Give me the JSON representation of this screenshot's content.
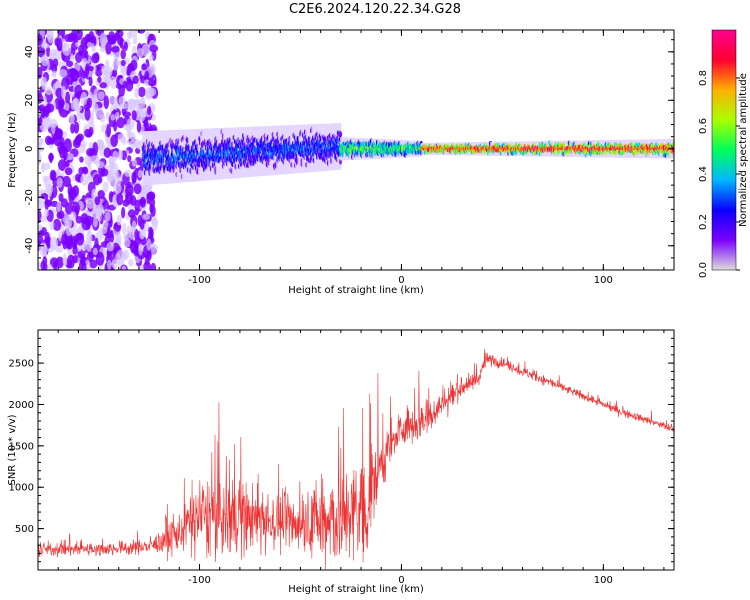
{
  "title": "C2E6.2024.120.22.34.G28",
  "colors": {
    "snr_line": "#ee3333",
    "axis": "#000000",
    "colormap": [
      "#dddddd",
      "#7a00ff",
      "#0a00ff",
      "#00b7ff",
      "#00ff5a",
      "#aaff00",
      "#ffb000",
      "#ff0030",
      "#ff0090"
    ]
  },
  "chart_data": [
    {
      "type": "heatmap",
      "name": "spectrogram",
      "xlabel": "Height of straight line (km)",
      "ylabel": "Frequency (Hz)",
      "xlim": [
        -180,
        135
      ],
      "ylim": [
        -50,
        49
      ],
      "xticks": [
        -100,
        0,
        100
      ],
      "yticks": [
        -40,
        -20,
        0,
        20,
        40
      ],
      "colorbar": {
        "label": "Normalized spectral amplitude",
        "range": [
          0,
          1
        ],
        "ticks": [
          "0.0",
          "0.2",
          "0.4",
          "0.6",
          "0.8"
        ]
      },
      "regions": [
        {
          "x_range": [
            -180,
            -122
          ],
          "freq_range": [
            -50,
            49
          ],
          "amplitude": 0.15,
          "pattern": "noise"
        },
        {
          "x_range": [
            -128,
            -30
          ],
          "center_freq": [
            -4,
            1
          ],
          "spread_hz": [
            7,
            6
          ],
          "amplitude": 0.3,
          "pattern": "broadband"
        },
        {
          "x_range": [
            -30,
            10
          ],
          "center_freq": [
            0,
            0
          ],
          "spread_hz": [
            3,
            2
          ],
          "amplitude": 0.55,
          "pattern": "narrowing"
        },
        {
          "x_range": [
            10,
            135
          ],
          "center_freq": [
            0,
            0
          ],
          "spread_hz": [
            1.5,
            2.5
          ],
          "amplitude": 0.9,
          "pattern": "tone"
        }
      ]
    },
    {
      "type": "line",
      "name": "snr",
      "xlabel": "Height of straight line (km)",
      "ylabel": "SNR (10 * v/v)",
      "xlim": [
        -180,
        135
      ],
      "ylim": [
        0,
        2900
      ],
      "xticks": [
        -100,
        0,
        100
      ],
      "yticks": [
        500,
        1000,
        1500,
        2000,
        2500
      ],
      "envelope": {
        "x": [
          -180,
          -150,
          -125,
          -112,
          -100,
          -85,
          -70,
          -50,
          -30,
          -18,
          -10,
          0,
          10,
          20,
          30,
          38,
          42,
          50,
          70,
          90,
          110,
          135
        ],
        "base": [
          250,
          250,
          280,
          400,
          650,
          650,
          600,
          550,
          600,
          700,
          1300,
          1700,
          1800,
          2000,
          2200,
          2300,
          2550,
          2500,
          2300,
          2100,
          1900,
          1700
        ],
        "noise": [
          120,
          120,
          120,
          300,
          700,
          700,
          550,
          450,
          800,
          1000,
          450,
          300,
          350,
          250,
          150,
          120,
          120,
          90,
          80,
          70,
          70,
          70
        ]
      }
    }
  ]
}
